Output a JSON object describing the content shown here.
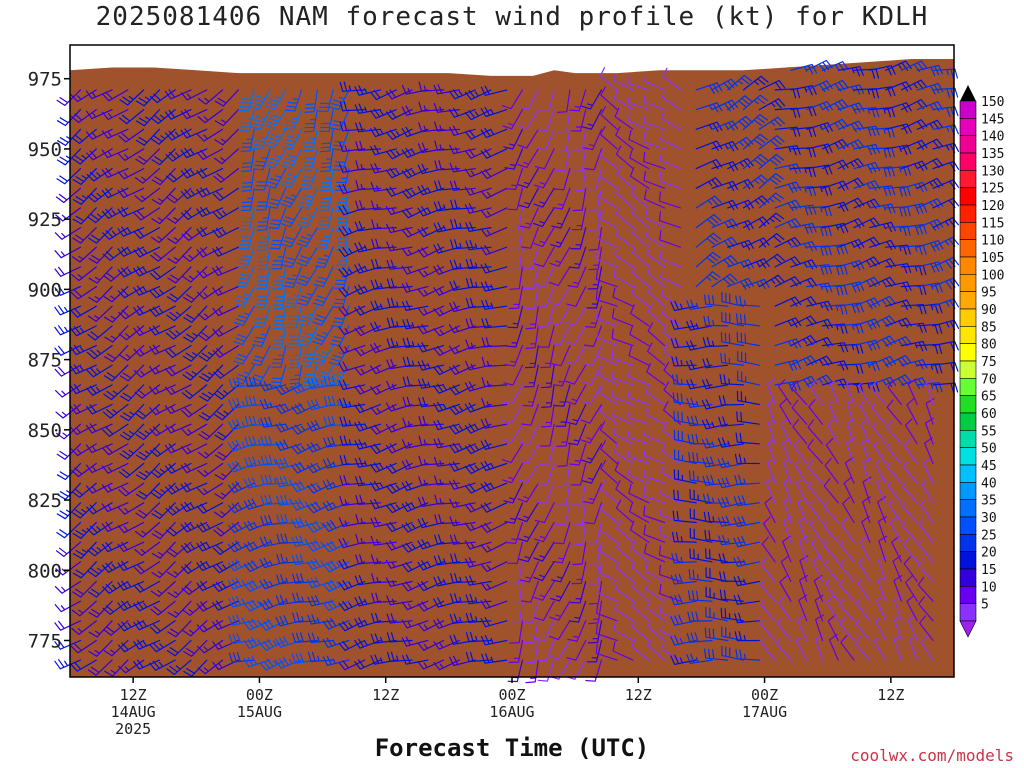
{
  "title": "2025081406 NAM forecast wind profile (kt) for KDLH",
  "credit": "coolwx.com/models",
  "chart_data": {
    "type": "wind-barb-profile",
    "title": "2025081406 NAM forecast wind profile (kt) for KDLH",
    "xlabel": "Forecast Time (UTC)",
    "ylabel": "",
    "y_unit": "hPa",
    "ylim": [
      987,
      762
    ],
    "x_unit": "forecast hour",
    "xlim": [
      0,
      84
    ],
    "yticks": [
      {
        "label": "775",
        "value": 775
      },
      {
        "label": "800",
        "value": 800
      },
      {
        "label": "825",
        "value": 825
      },
      {
        "label": "850",
        "value": 850
      },
      {
        "label": "875",
        "value": 875
      },
      {
        "label": "900",
        "value": 900
      },
      {
        "label": "925",
        "value": 925
      },
      {
        "label": "950",
        "value": 950
      },
      {
        "label": "975",
        "value": 975
      }
    ],
    "xticks": [
      {
        "hour": 6,
        "lines": [
          "12Z",
          "14AUG",
          "2025"
        ]
      },
      {
        "hour": 18,
        "lines": [
          "00Z",
          "15AUG"
        ]
      },
      {
        "hour": 30,
        "lines": [
          "12Z"
        ]
      },
      {
        "hour": 42,
        "lines": [
          "00Z",
          "16AUG"
        ]
      },
      {
        "hour": 54,
        "lines": [
          "12Z"
        ]
      },
      {
        "hour": 66,
        "lines": [
          "00Z",
          "17AUG"
        ]
      },
      {
        "hour": 78,
        "lines": [
          "12Z"
        ]
      }
    ],
    "surface_pressure": [
      {
        "hour": 0,
        "p": 978
      },
      {
        "hour": 4,
        "p": 979
      },
      {
        "hour": 8,
        "p": 979
      },
      {
        "hour": 12,
        "p": 978
      },
      {
        "hour": 16,
        "p": 977
      },
      {
        "hour": 20,
        "p": 977
      },
      {
        "hour": 24,
        "p": 977
      },
      {
        "hour": 28,
        "p": 977
      },
      {
        "hour": 32,
        "p": 977
      },
      {
        "hour": 36,
        "p": 977
      },
      {
        "hour": 40,
        "p": 976
      },
      {
        "hour": 44,
        "p": 976
      },
      {
        "hour": 46,
        "p": 978
      },
      {
        "hour": 48,
        "p": 977
      },
      {
        "hour": 52,
        "p": 977
      },
      {
        "hour": 56,
        "p": 978
      },
      {
        "hour": 60,
        "p": 978
      },
      {
        "hour": 64,
        "p": 978
      },
      {
        "hour": 68,
        "p": 979
      },
      {
        "hour": 72,
        "p": 980
      },
      {
        "hour": 76,
        "p": 981
      },
      {
        "hour": 80,
        "p": 982
      },
      {
        "hour": 84,
        "p": 982
      }
    ],
    "wind_regimes": [
      {
        "hours": [
          0,
          17
        ],
        "pressure": [
          762,
          987
        ],
        "direction_deg": 235,
        "speed_kt": 20
      },
      {
        "hours": [
          17,
          28
        ],
        "pressure": [
          762,
          870
        ],
        "direction_deg": 255,
        "speed_kt": 30
      },
      {
        "hours": [
          17,
          28
        ],
        "pressure": [
          870,
          987
        ],
        "direction_deg": 200,
        "speed_kt": 35
      },
      {
        "hours": [
          28,
          42
        ],
        "pressure": [
          762,
          987
        ],
        "direction_deg": 255,
        "speed_kt": 20
      },
      {
        "hours": [
          42,
          52
        ],
        "pressure": [
          762,
          987
        ],
        "direction_deg": 200,
        "speed_kt": 12
      },
      {
        "hours": [
          52,
          59
        ],
        "pressure": [
          762,
          987
        ],
        "direction_deg": 300,
        "speed_kt": 8
      },
      {
        "hours": [
          59,
          66
        ],
        "pressure": [
          762,
          900
        ],
        "direction_deg": 270,
        "speed_kt": 25
      },
      {
        "hours": [
          59,
          66
        ],
        "pressure": [
          900,
          987
        ],
        "direction_deg": 60,
        "speed_kt": 25
      },
      {
        "hours": [
          66,
          84
        ],
        "pressure": [
          762,
          860
        ],
        "direction_deg": 330,
        "speed_kt": 8
      },
      {
        "hours": [
          66,
          84
        ],
        "pressure": [
          860,
          987
        ],
        "direction_deg": 75,
        "speed_kt": 25
      }
    ],
    "colorbar": {
      "labels": [
        "150",
        "145",
        "140",
        "135",
        "130",
        "125",
        "120",
        "115",
        "110",
        "105",
        "100",
        "95",
        "90",
        "85",
        "80",
        "75",
        "70",
        "65",
        "60",
        "55",
        "50",
        "45",
        "40",
        "35",
        "30",
        "25",
        "20",
        "15",
        "10",
        "5"
      ],
      "colors": [
        "#cc00cc",
        "#e600b8",
        "#f00090",
        "#ff0066",
        "#ff1a33",
        "#ff0000",
        "#ff2200",
        "#ff4400",
        "#ff6600",
        "#ff8800",
        "#ff9900",
        "#ffaa00",
        "#ffcc00",
        "#ffe600",
        "#ffff00",
        "#ccff33",
        "#66ff33",
        "#22dd22",
        "#00cc44",
        "#00ddaa",
        "#00e0e0",
        "#00c0ff",
        "#0099ff",
        "#0070ff",
        "#0050ff",
        "#0033ee",
        "#0011dd",
        "#3300dd",
        "#6600ee",
        "#8833ff"
      ]
    },
    "colors": {
      "ground": "#a0522d",
      "axis": "#000000"
    }
  }
}
